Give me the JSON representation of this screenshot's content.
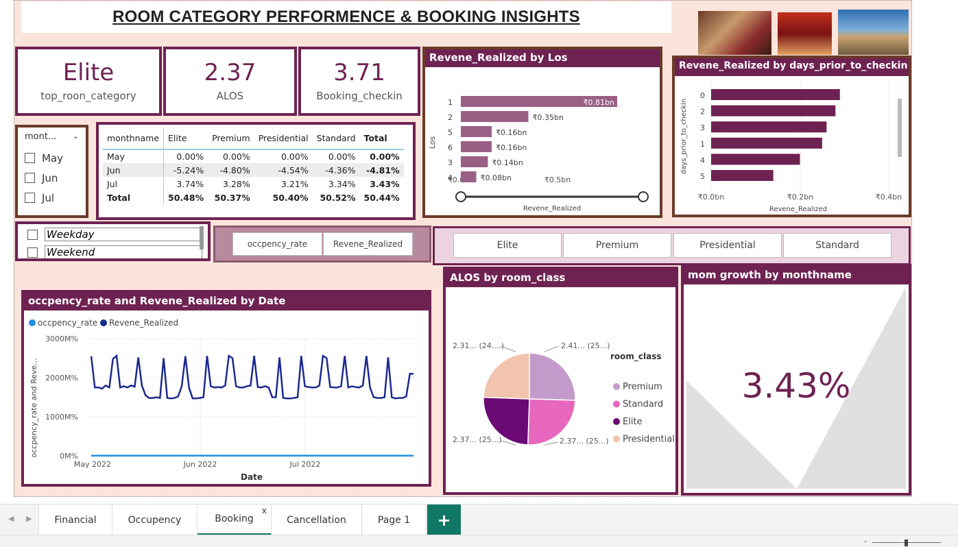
{
  "title": "ROOM CATEGORY PERFORMENCE & BOOKING INSIGHTS",
  "kpis": [
    {
      "value": "Elite",
      "label": "top_roon_category"
    },
    {
      "value": "2.37",
      "label": "ALOS"
    },
    {
      "value": "3.71",
      "label": "Booking_checkin"
    }
  ],
  "month_slicer": {
    "header": "mont...",
    "items": [
      "May",
      "Jun",
      "Jul"
    ]
  },
  "day_slicer": {
    "items": [
      "Weekday",
      "Weekend"
    ]
  },
  "matrix": {
    "headers": [
      "monthname",
      "Elite",
      "Premium",
      "Presidential",
      "Standard",
      "Total"
    ],
    "rows": [
      [
        "May",
        "0.00%",
        "0.00%",
        "0.00%",
        "0.00%",
        "0.00%"
      ],
      [
        "Jun",
        "-5.24%",
        "-4.80%",
        "-4.54%",
        "-4.36%",
        "-4.81%"
      ],
      [
        "Jul",
        "3.74%",
        "3.28%",
        "3.21%",
        "3.34%",
        "3.43%"
      ]
    ],
    "total": [
      "Total",
      "50.48%",
      "50.37%",
      "50.40%",
      "50.52%",
      "50.44%"
    ]
  },
  "measure_buttons": [
    "occpency_rate",
    "Revene_Realized"
  ],
  "class_buttons": [
    "Elite",
    "Premium",
    "Presidential",
    "Standard"
  ],
  "los_chart": {
    "title": "Revene_Realized by Los",
    "ylabel": "Los",
    "xlabel": "Revene_Realized",
    "x_ticks": [
      "₹0.0bn",
      "₹0.5bn"
    ],
    "color": "#9a5f84"
  },
  "days_chart": {
    "title": "Revene_Realized by days_prior_to_checkin",
    "ylabel": "days_prior_to_checkin",
    "xlabel": "Revene_Realized",
    "x_ticks": [
      "₹0.0bn",
      "₹0.2bn",
      "₹0.4bn"
    ],
    "color": "#6e2252"
  },
  "line_chart": {
    "title": "occpency_rate and Revene_Realized by Date",
    "legend": [
      "occpency_rate",
      "Revene_Realized"
    ],
    "ylabel": "occpency_rate and Reve...",
    "xlabel": "Date",
    "y_ticks": [
      "3000M%",
      "2000M%",
      "1000M%",
      "0M%"
    ],
    "x_ticks": [
      "May 2022",
      "Jun 2022",
      "Jul 2022"
    ],
    "colors": {
      "occupancy": "#1f8fe0",
      "revenue": "#1b2a8f"
    }
  },
  "pie": {
    "title": "ALOS by room_class",
    "legend_title": "room_class",
    "labels": [
      "2.41... (25...)",
      "2.37... (25...)",
      "2.37... (25...)",
      "2.31... (24....)"
    ]
  },
  "mom": {
    "title": "mom growth by monthname",
    "value": "3.43%"
  },
  "tabs": [
    "Financial",
    "Occupency",
    "Booking",
    "Cancellation",
    "Page 1"
  ],
  "active_tab_close": "x",
  "chart_data": [
    {
      "type": "bar",
      "title": "Revene_Realized by Los",
      "xlabel": "Revene_Realized",
      "ylabel": "Los",
      "categories": [
        "1",
        "2",
        "5",
        "6",
        "3",
        "4"
      ],
      "values": [
        0.81,
        0.35,
        0.16,
        0.16,
        0.14,
        0.08
      ],
      "data_labels": [
        "₹0.81bn",
        "₹0.35bn",
        "₹0.16bn",
        "₹0.16bn",
        "₹0.14bn",
        "₹0.08bn"
      ],
      "xlim": [
        0,
        0.81
      ]
    },
    {
      "type": "bar",
      "title": "Revene_Realized by days_prior_to_checkin",
      "xlabel": "Revene_Realized",
      "ylabel": "days_prior_to_checkin",
      "categories": [
        "0",
        "2",
        "3",
        "1",
        "4",
        "5"
      ],
      "values": [
        0.29,
        0.28,
        0.26,
        0.25,
        0.2,
        0.14
      ],
      "xlim": [
        0,
        0.4
      ]
    },
    {
      "type": "line",
      "title": "occpency_rate and Revene_Realized by Date",
      "xlabel": "Date",
      "ylabel": "occpency_rate and Reve...",
      "x_range": [
        "2022-05-01",
        "2022-07-31"
      ],
      "ylim": [
        0,
        3000
      ],
      "series": [
        {
          "name": "occpency_rate",
          "values": [
            5,
            5,
            5,
            5,
            5,
            5,
            5,
            5,
            5,
            5,
            5,
            5,
            5,
            5,
            5,
            5,
            5,
            5,
            5,
            5,
            5,
            5,
            5,
            5,
            5,
            5,
            5,
            5,
            5,
            5,
            5,
            5,
            5,
            5,
            5,
            5,
            5,
            5,
            5,
            5,
            5,
            5,
            5,
            5,
            5,
            5,
            5,
            5,
            5,
            5,
            5,
            5,
            5,
            5,
            5,
            5,
            5,
            5,
            5,
            5,
            5,
            5,
            5,
            5,
            5,
            5,
            5,
            5,
            5,
            5,
            5,
            5,
            5,
            5,
            5,
            5,
            5,
            5,
            5,
            5,
            5,
            5,
            5,
            5,
            5,
            5,
            5,
            5,
            5,
            5,
            5,
            5
          ]
        },
        {
          "name": "Revene_Realized",
          "values": [
            2550,
            1750,
            1750,
            1720,
            1800,
            1750,
            2480,
            2560,
            1750,
            1780,
            1750,
            1800,
            1770,
            2520,
            1800,
            1550,
            1480,
            1480,
            1500,
            1480,
            2500,
            1480,
            1470,
            1480,
            1520,
            1780,
            2550,
            1750,
            1470,
            1470,
            1480,
            1500,
            2560,
            1780,
            1750,
            1760,
            1750,
            1800,
            2560,
            2500,
            1780,
            1750,
            1750,
            1780,
            1800,
            2560,
            1760,
            1750,
            1780,
            1750,
            1500,
            1500,
            2520,
            1480,
            1470,
            1470,
            1480,
            1500,
            2560,
            1780,
            1760,
            1750,
            1750,
            1800,
            2560,
            2500,
            1760,
            1750,
            1750,
            1780,
            2560,
            1750,
            1780,
            1760,
            1750,
            1800,
            2560,
            1750,
            1500,
            1480,
            1480,
            1500,
            2520,
            1500,
            1470,
            1480,
            1480,
            1520,
            2100,
            2100
          ]
        }
      ]
    },
    {
      "type": "pie",
      "title": "ALOS by room_class",
      "categories": [
        "Premium",
        "Standard",
        "Elite",
        "Presidential"
      ],
      "values": [
        2.41,
        2.37,
        2.37,
        2.31
      ],
      "colors": [
        "#c39bcb",
        "#e667bd",
        "#6b0a74",
        "#f2c3ad"
      ]
    }
  ]
}
